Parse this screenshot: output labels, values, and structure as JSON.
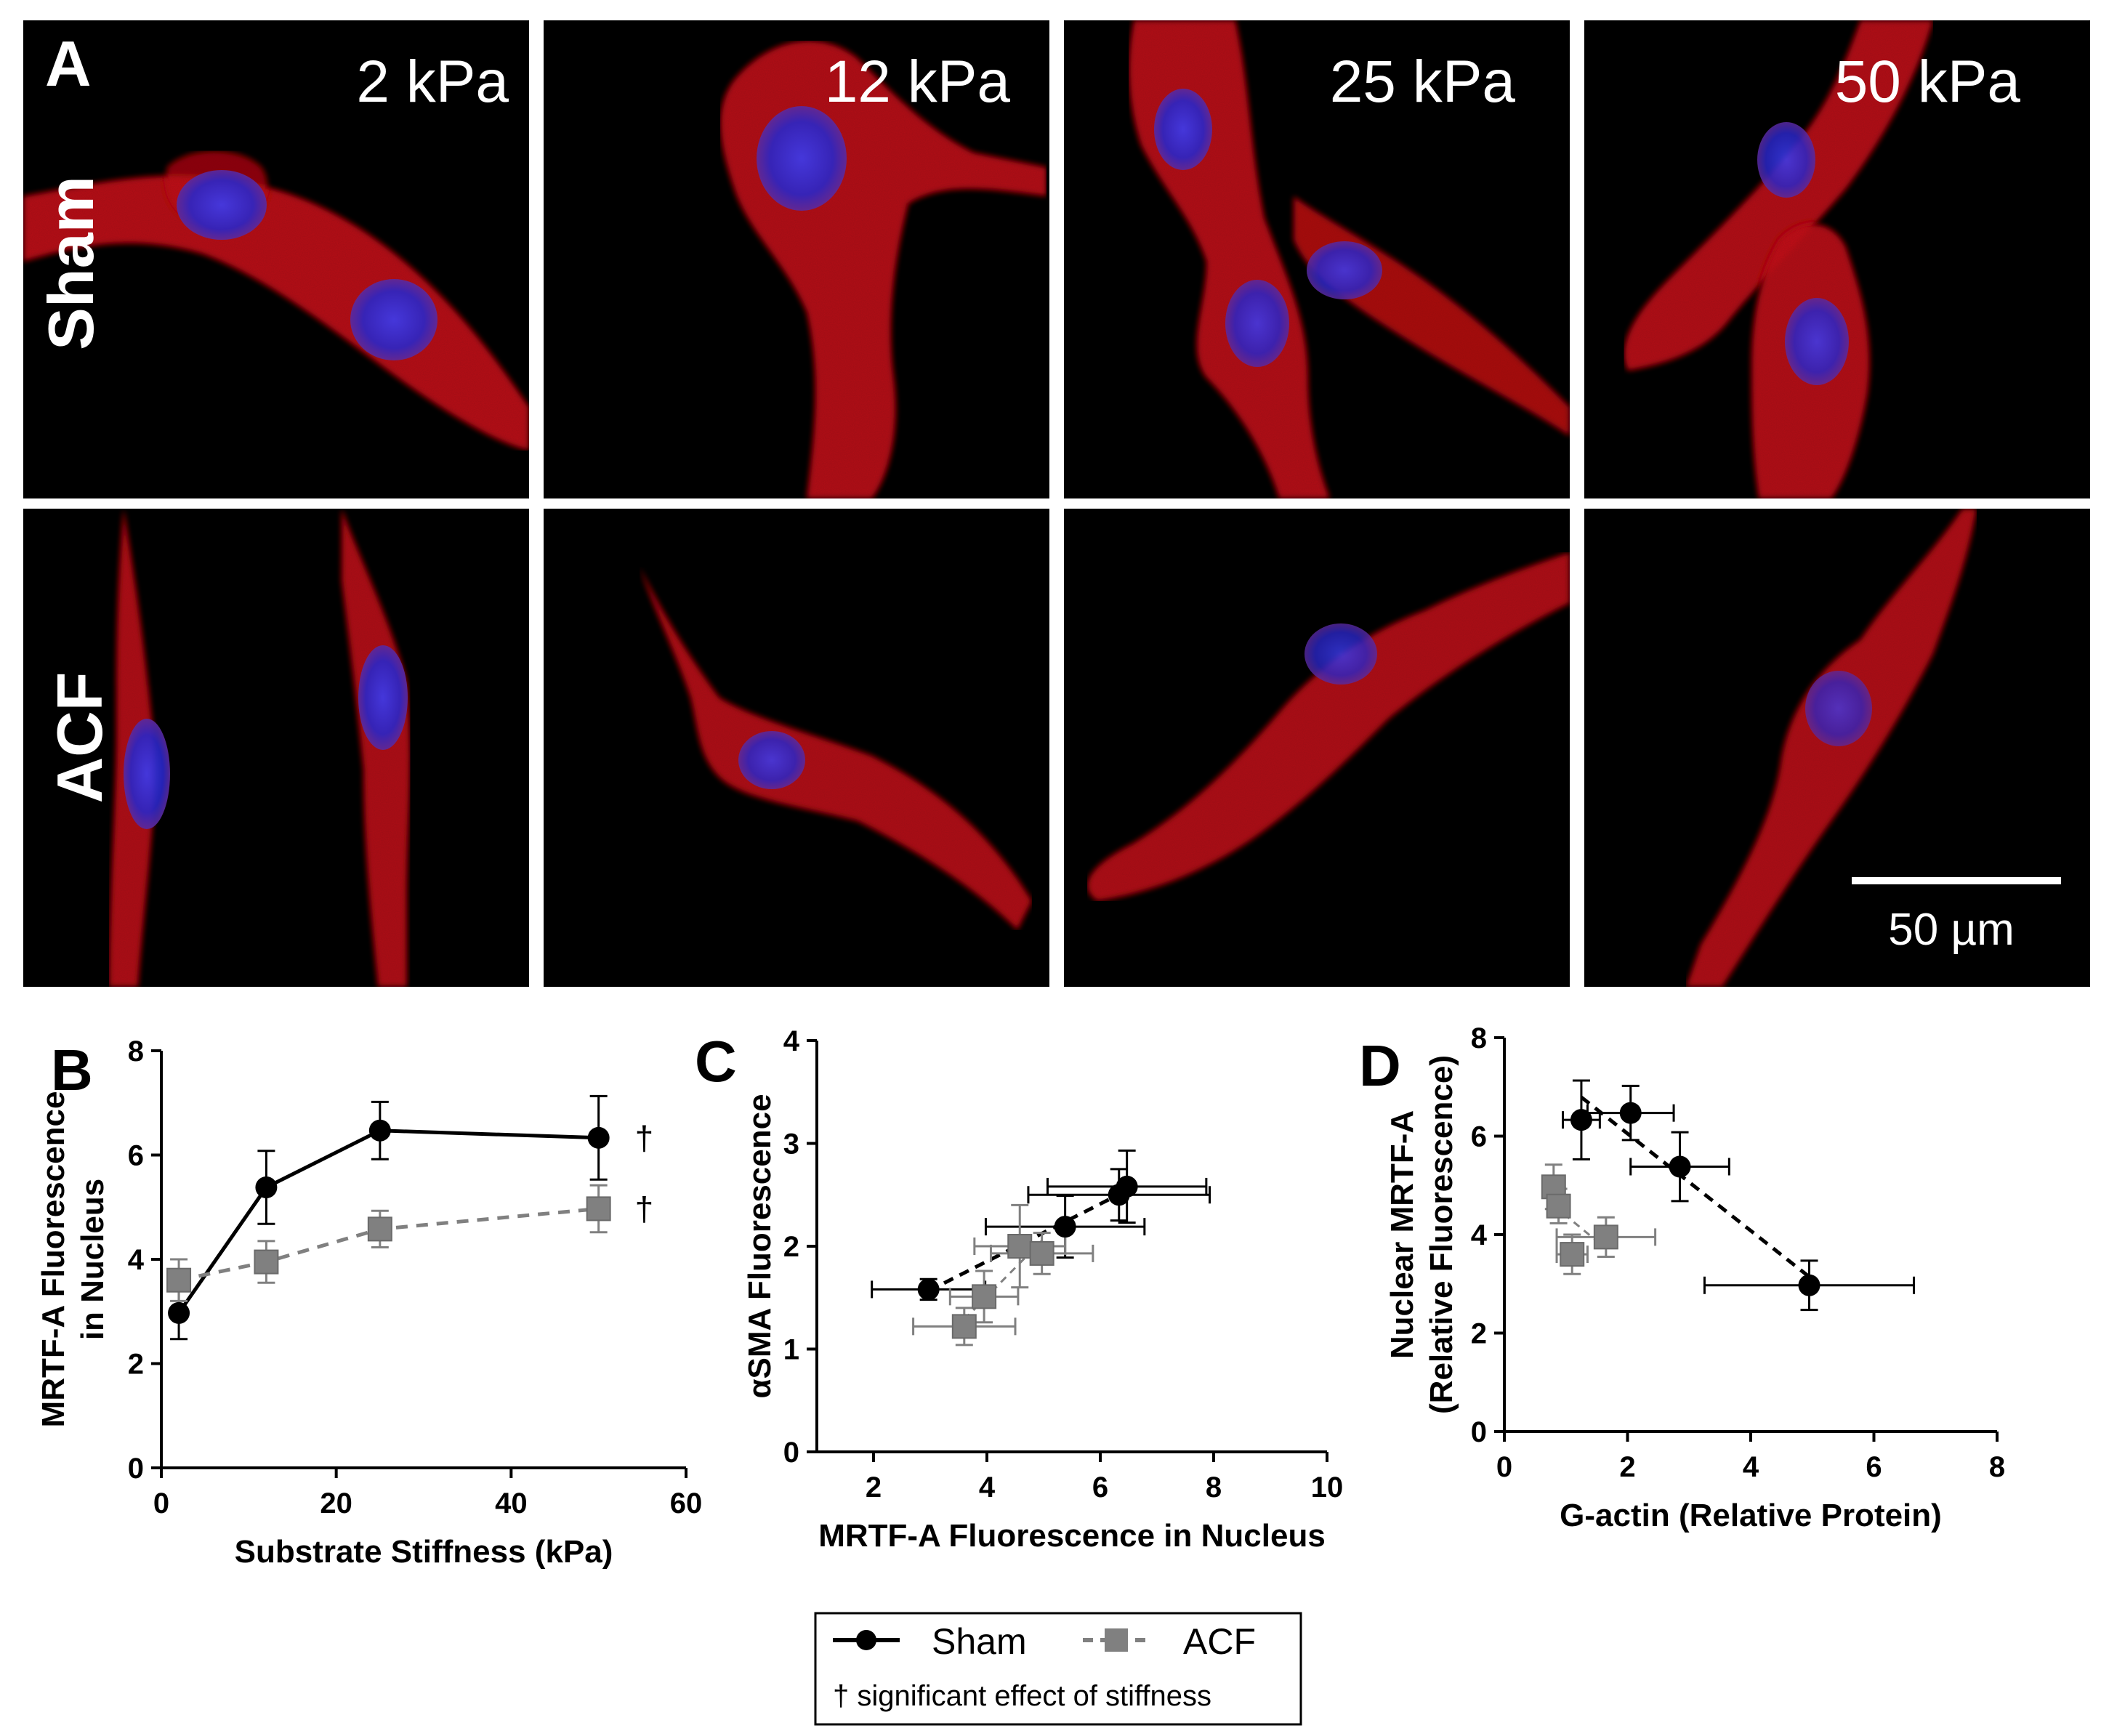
{
  "panel_a": {
    "letter": "A",
    "columns": [
      "2 kPa",
      "12 kPa",
      "25 kPa",
      "50 kPa"
    ],
    "rows": [
      "Sham",
      "ACF"
    ],
    "scale_bar_label": "50 µm",
    "colors": {
      "background": "#000000",
      "cytoplasm": "#d01818",
      "nucleus": "#2a2ad8"
    }
  },
  "legend": {
    "sham_label": "Sham",
    "acf_label": "ACF",
    "note": "† significant effect of stiffness"
  },
  "colors": {
    "sham": "#000000",
    "acf": "#808080"
  },
  "chart_data": [
    {
      "panel": "B",
      "type": "line",
      "xlabel": "Substrate Stiffness (kPa)",
      "ylabel": [
        "MRTF-A Fluorescence",
        "in Nucleus"
      ],
      "xlim": [
        0,
        60
      ],
      "ylim": [
        0,
        8
      ],
      "xticks": [
        0,
        20,
        40,
        60
      ],
      "yticks": [
        0,
        2,
        4,
        6,
        8
      ],
      "x": [
        2,
        12,
        25,
        50
      ],
      "series": [
        {
          "name": "Sham",
          "values": [
            2.97,
            5.38,
            6.47,
            6.33
          ],
          "yerr": [
            0.5,
            0.7,
            0.55,
            0.8
          ],
          "dagger": "†"
        },
        {
          "name": "ACF",
          "values": [
            3.6,
            3.95,
            4.58,
            4.97
          ],
          "yerr": [
            0.4,
            0.4,
            0.35,
            0.45
          ],
          "dagger": "†"
        }
      ]
    },
    {
      "panel": "C",
      "type": "scatter",
      "xlabel": "MRTF-A Fluorescence in Nucleus",
      "ylabel": [
        "αSMA Fluorescence"
      ],
      "xlim": [
        1,
        10
      ],
      "ylim": [
        0,
        4
      ],
      "xticks": [
        2,
        4,
        6,
        8,
        10
      ],
      "yticks": [
        0,
        1,
        2,
        3,
        4
      ],
      "series": [
        {
          "name": "Sham",
          "x": [
            2.97,
            5.38,
            6.33,
            6.47
          ],
          "y": [
            1.58,
            2.19,
            2.5,
            2.58
          ],
          "xerr": [
            1.0,
            1.4,
            1.6,
            1.4
          ],
          "yerr": [
            0.1,
            0.3,
            0.25,
            0.35
          ]
        },
        {
          "name": "ACF",
          "x": [
            3.6,
            3.95,
            4.58,
            4.97
          ],
          "y": [
            1.22,
            1.51,
            2.0,
            1.93
          ],
          "xerr": [
            0.9,
            0.6,
            0.8,
            0.9
          ],
          "yerr": [
            0.18,
            0.25,
            0.4,
            0.2
          ]
        }
      ]
    },
    {
      "panel": "D",
      "type": "scatter",
      "xlabel": "G-actin (Relative Protein)",
      "ylabel": [
        "Nuclear MRTF-A",
        "(Relative Fluorescence)"
      ],
      "xlim": [
        0,
        8
      ],
      "ylim": [
        0,
        8
      ],
      "xticks": [
        0,
        2,
        4,
        6,
        8
      ],
      "yticks": [
        0,
        2,
        4,
        6,
        8
      ],
      "series": [
        {
          "name": "Sham",
          "x": [
            1.25,
            2.05,
            2.85,
            4.95
          ],
          "y": [
            6.33,
            6.47,
            5.38,
            2.97
          ],
          "xerr": [
            0.3,
            0.7,
            0.8,
            1.7
          ],
          "yerr": [
            0.8,
            0.55,
            0.7,
            0.5
          ]
        },
        {
          "name": "ACF",
          "x": [
            0.8,
            0.88,
            1.1,
            1.65
          ],
          "y": [
            4.97,
            4.58,
            3.6,
            3.95
          ],
          "xerr": [
            0.0,
            0.0,
            0.25,
            0.8
          ],
          "yerr": [
            0.45,
            0.35,
            0.4,
            0.4
          ]
        }
      ]
    }
  ]
}
